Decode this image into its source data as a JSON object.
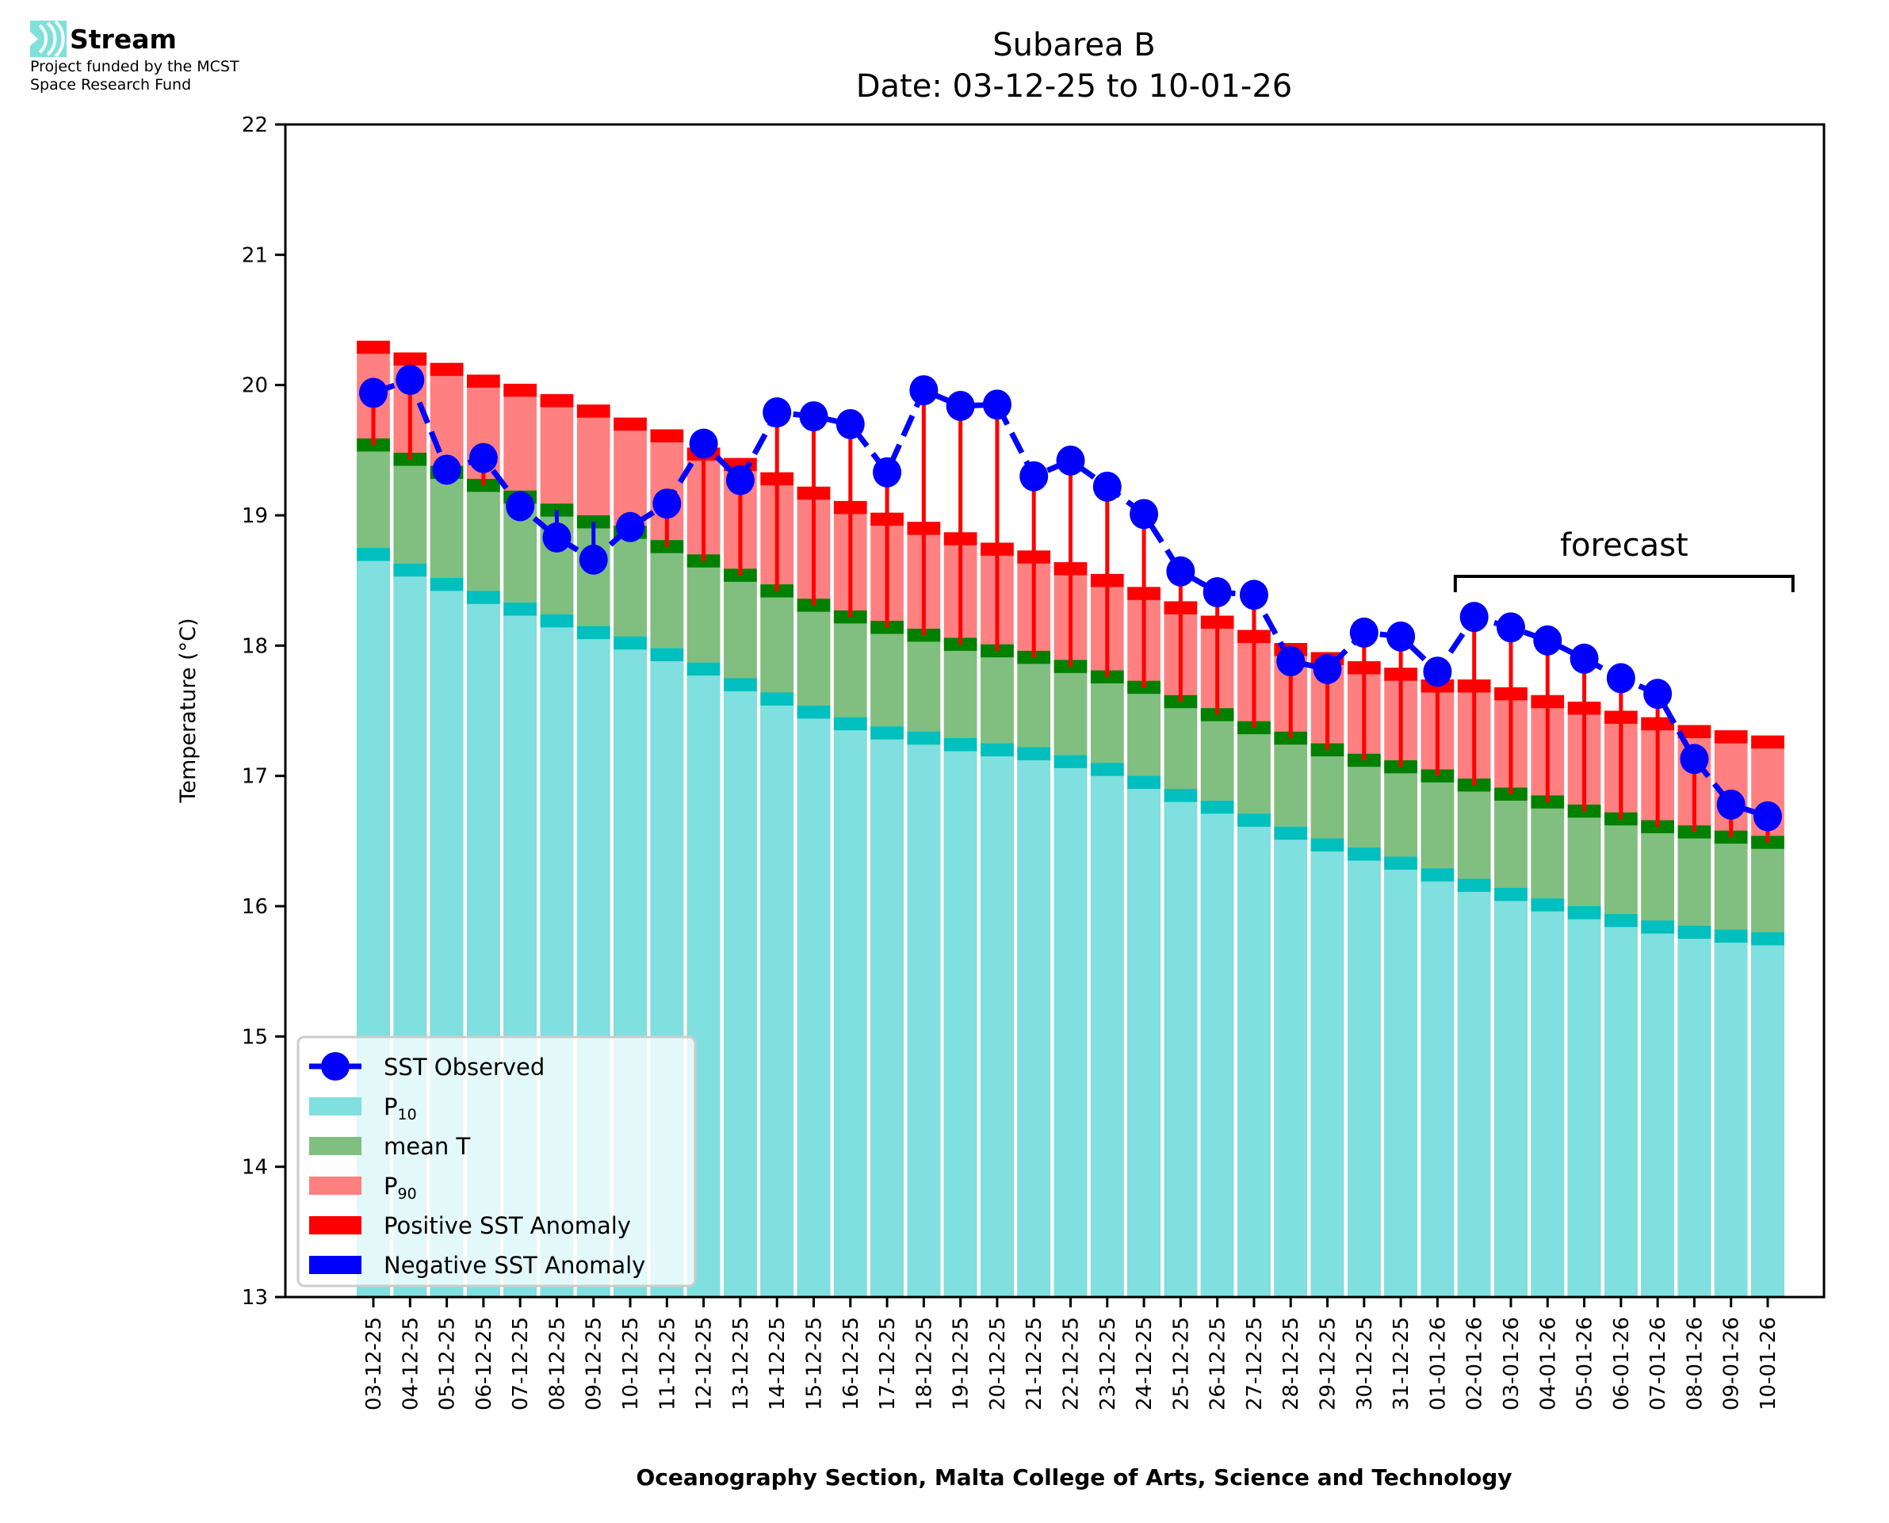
{
  "logo": {
    "name": "Stream",
    "funding_line1": "Project funded by the MCST",
    "funding_line2": "Space Research Fund"
  },
  "colors": {
    "p10_fill": "#80dfdf",
    "p10_cap": "#00bfbf",
    "mean_fill": "#80bf80",
    "mean_cap": "#008000",
    "p90_fill": "#ff8080",
    "p90_cap": "#ff0000",
    "positive_anomaly": "#ff0000",
    "negative_anomaly": "#0000ff",
    "observed": "#0000ff",
    "legend_bg": "#e6f7f7"
  },
  "chart_data": {
    "type": "bar",
    "title": "Subarea B",
    "subtitle": "Date: 03-12-25 to 10-01-26",
    "xlabel": "Oceanography Section, Malta College of Arts, Science and Technology",
    "ylabel": "Temperature (°C)",
    "ylim": [
      13,
      22
    ],
    "yticks": [
      "13",
      "14",
      "15",
      "16",
      "17",
      "18",
      "19",
      "20",
      "21",
      "22"
    ],
    "grid": false,
    "legend_position": "lower-left",
    "legend": [
      {
        "label": "SST Observed",
        "kind": "line-marker",
        "color_key": "observed"
      },
      {
        "label": "P",
        "sub": "10",
        "kind": "patch",
        "color_key": "p10_fill"
      },
      {
        "label": "mean T",
        "kind": "patch",
        "color_key": "mean_fill"
      },
      {
        "label": "P",
        "sub": "90",
        "kind": "patch",
        "color_key": "p90_fill"
      },
      {
        "label": "Positive SST Anomaly",
        "kind": "patch",
        "color_key": "positive_anomaly"
      },
      {
        "label": "Negative SST Anomaly",
        "kind": "patch",
        "color_key": "negative_anomaly"
      }
    ],
    "annotation": {
      "text": "forecast",
      "from_category": "02-01-26",
      "to_category": "10-01-26"
    },
    "categories": [
      "03-12-25",
      "04-12-25",
      "05-12-25",
      "06-12-25",
      "07-12-25",
      "08-12-25",
      "09-12-25",
      "10-12-25",
      "11-12-25",
      "12-12-25",
      "13-12-25",
      "14-12-25",
      "15-12-25",
      "16-12-25",
      "17-12-25",
      "18-12-25",
      "19-12-25",
      "20-12-25",
      "21-12-25",
      "22-12-25",
      "23-12-25",
      "24-12-25",
      "25-12-25",
      "26-12-25",
      "27-12-25",
      "28-12-25",
      "29-12-25",
      "30-12-25",
      "31-12-25",
      "01-01-26",
      "02-01-26",
      "03-01-26",
      "04-01-26",
      "05-01-26",
      "06-01-26",
      "07-01-26",
      "08-01-26",
      "09-01-26",
      "10-01-26"
    ],
    "series": [
      {
        "name": "P10",
        "values": [
          18.7,
          18.58,
          18.47,
          18.37,
          18.28,
          18.19,
          18.1,
          18.02,
          17.93,
          17.82,
          17.7,
          17.59,
          17.49,
          17.4,
          17.33,
          17.29,
          17.24,
          17.2,
          17.17,
          17.11,
          17.05,
          16.95,
          16.85,
          16.76,
          16.66,
          16.56,
          16.47,
          16.4,
          16.33,
          16.24,
          16.16,
          16.09,
          16.01,
          15.95,
          15.89,
          15.84,
          15.8,
          15.77,
          15.75
        ]
      },
      {
        "name": "mean T",
        "values": [
          19.54,
          19.43,
          19.33,
          19.23,
          19.14,
          19.04,
          18.95,
          18.87,
          18.76,
          18.65,
          18.54,
          18.42,
          18.31,
          18.22,
          18.14,
          18.08,
          18.01,
          17.96,
          17.91,
          17.84,
          17.76,
          17.68,
          17.57,
          17.47,
          17.37,
          17.29,
          17.2,
          17.12,
          17.07,
          17.0,
          16.93,
          16.86,
          16.8,
          16.73,
          16.67,
          16.61,
          16.57,
          16.53,
          16.49
        ]
      },
      {
        "name": "P90",
        "values": [
          20.29,
          20.2,
          20.12,
          20.03,
          19.96,
          19.88,
          19.8,
          19.7,
          19.61,
          19.47,
          19.39,
          19.28,
          19.17,
          19.06,
          18.97,
          18.9,
          18.82,
          18.74,
          18.68,
          18.59,
          18.5,
          18.4,
          18.29,
          18.18,
          18.07,
          17.97,
          17.9,
          17.83,
          17.78,
          17.69,
          17.69,
          17.63,
          17.57,
          17.52,
          17.45,
          17.4,
          17.34,
          17.3,
          17.26
        ]
      },
      {
        "name": "SST Observed",
        "values": [
          19.94,
          20.04,
          19.35,
          19.44,
          19.07,
          18.83,
          18.66,
          18.91,
          19.09,
          19.55,
          19.27,
          19.79,
          19.76,
          19.7,
          19.33,
          19.96,
          19.84,
          19.85,
          19.3,
          19.42,
          19.22,
          19.01,
          18.57,
          18.41,
          18.39,
          17.88,
          17.82,
          18.1,
          18.07,
          17.8,
          18.22,
          18.14,
          18.04,
          17.9,
          17.75,
          17.63,
          17.13,
          16.78,
          16.69
        ]
      }
    ]
  }
}
